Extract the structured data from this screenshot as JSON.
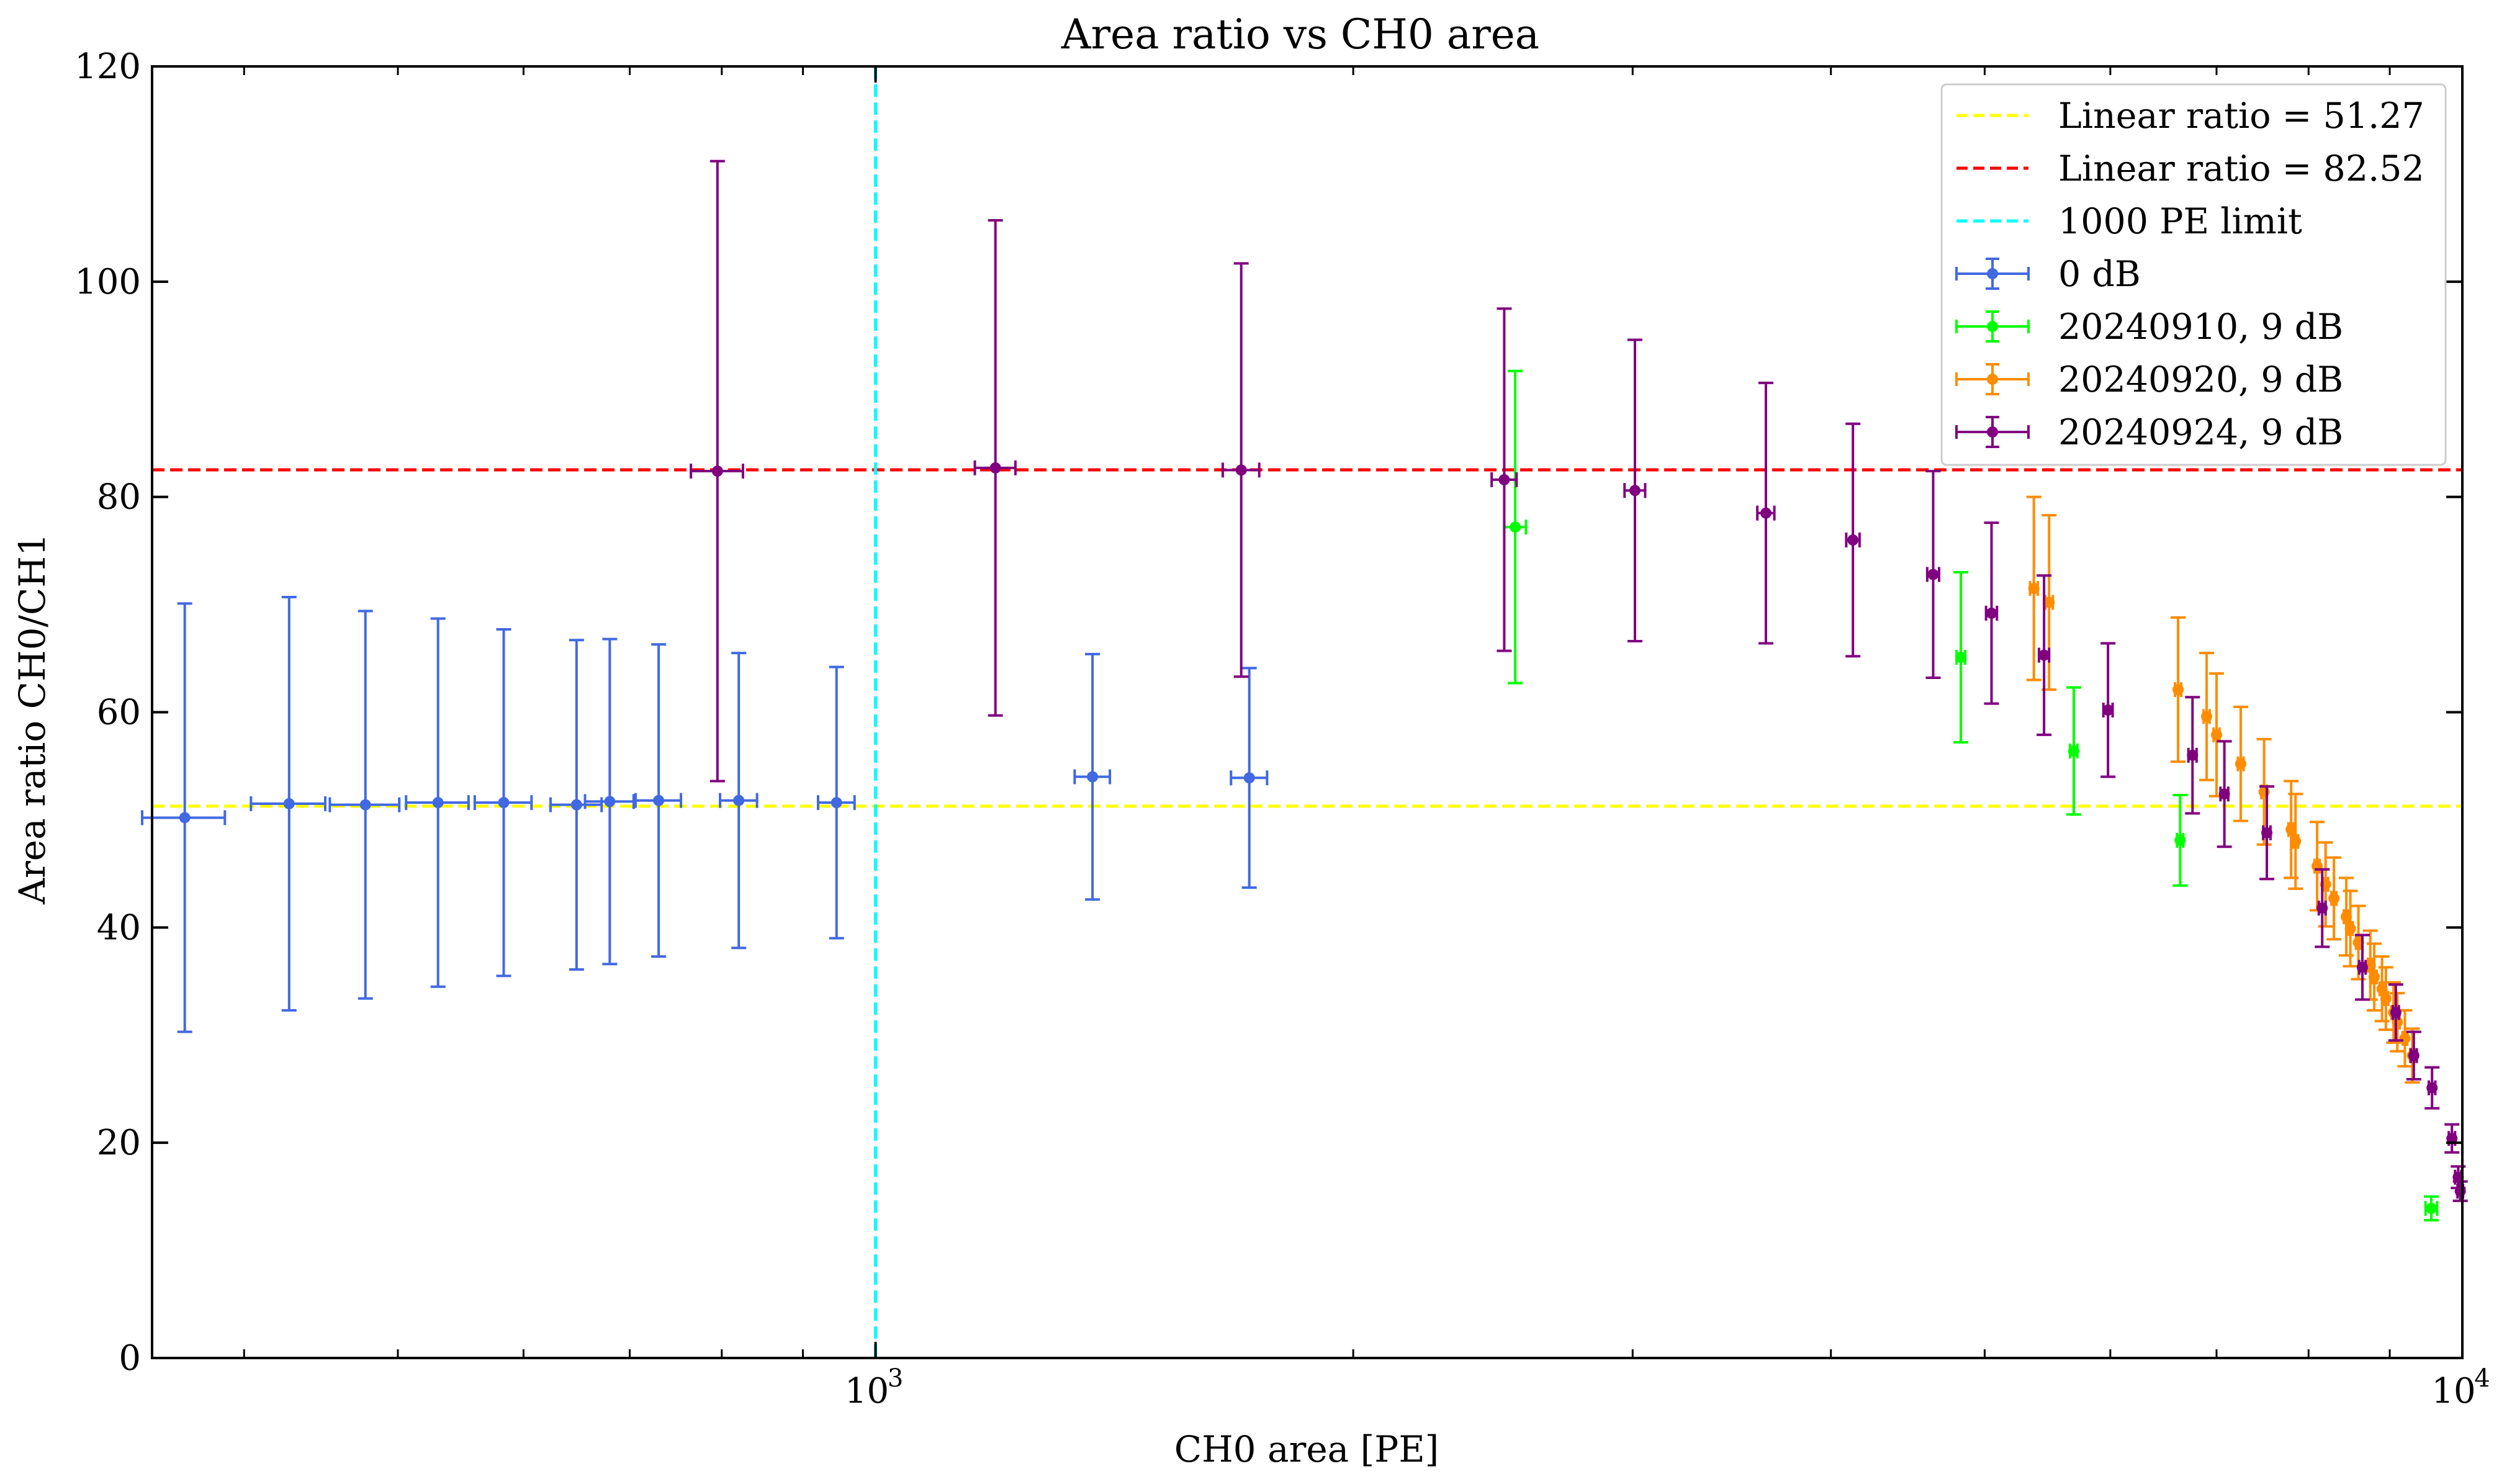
{
  "chart_data": {
    "type": "scatter",
    "title": "Area ratio vs CH0 area",
    "xlabel": "CH0 area [PE]",
    "ylabel": "Area ratio CH0/CH1",
    "xscale": "log",
    "xlim": [
      350,
      10000
    ],
    "ylim": [
      0,
      120
    ],
    "grid": false,
    "legend_position": "top-right",
    "y_ticks": [
      "0",
      "20",
      "40",
      "60",
      "80",
      "100",
      "120"
    ],
    "x_tick_labels": [
      {
        "value": 1000,
        "base": "10",
        "exp": "3"
      },
      {
        "value": 10000,
        "base": "10",
        "exp": "4"
      }
    ],
    "reference_lines": [
      {
        "name": "Linear ratio = 51.27",
        "orientation": "horizontal",
        "value": 51.27,
        "color": "#ffff00"
      },
      {
        "name": "Linear ratio = 82.52",
        "orientation": "horizontal",
        "value": 82.52,
        "color": "#ff0000"
      },
      {
        "name": "1000 PE limit",
        "orientation": "vertical",
        "value": 1000,
        "color": "#00ffff"
      }
    ],
    "series": [
      {
        "name": "0 dB",
        "color": "#4169e1",
        "points": [
          {
            "x": 367,
            "y": 50.2,
            "xerr": 22,
            "yerr": 19.9
          },
          {
            "x": 427,
            "y": 51.5,
            "xerr": 23,
            "yerr": 19.2
          },
          {
            "x": 477,
            "y": 51.4,
            "xerr": 24,
            "yerr": 18.0
          },
          {
            "x": 530,
            "y": 51.6,
            "xerr": 24,
            "yerr": 17.1
          },
          {
            "x": 583,
            "y": 51.6,
            "xerr": 24,
            "yerr": 16.1
          },
          {
            "x": 648,
            "y": 51.4,
            "xerr": 24,
            "yerr": 15.3
          },
          {
            "x": 680,
            "y": 51.7,
            "xerr": 24,
            "yerr": 15.1
          },
          {
            "x": 730,
            "y": 51.8,
            "xerr": 24,
            "yerr": 14.5
          },
          {
            "x": 820,
            "y": 51.8,
            "xerr": 22,
            "yerr": 13.7
          },
          {
            "x": 945,
            "y": 51.6,
            "xerr": 25,
            "yerr": 12.6
          },
          {
            "x": 1370,
            "y": 54.0,
            "xerr": 35,
            "yerr": 11.4
          },
          {
            "x": 1720,
            "y": 53.9,
            "xerr": 45,
            "yerr": 10.2
          }
        ]
      },
      {
        "name": "20240910, 9 dB",
        "color": "#00ff00",
        "points": [
          {
            "x": 2530,
            "y": 77.2,
            "xerr": 40,
            "yerr": 14.5
          },
          {
            "x": 4830,
            "y": 65.1,
            "xerr": 30,
            "yerr": 7.9
          },
          {
            "x": 5690,
            "y": 56.4,
            "xerr": 30,
            "yerr": 5.9
          },
          {
            "x": 6640,
            "y": 48.1,
            "xerr": 30,
            "yerr": 4.2
          },
          {
            "x": 9560,
            "y": 13.9,
            "xerr": 80,
            "yerr": 1.1
          }
        ]
      },
      {
        "name": "20240920, 9 dB",
        "color": "#ff8c00",
        "points": [
          {
            "x": 5370,
            "y": 71.5,
            "xerr": 30,
            "yerr": 8.5
          },
          {
            "x": 5490,
            "y": 70.2,
            "xerr": 30,
            "yerr": 8.1
          },
          {
            "x": 6620,
            "y": 62.1,
            "xerr": 30,
            "yerr": 6.7
          },
          {
            "x": 6900,
            "y": 59.6,
            "xerr": 30,
            "yerr": 5.9
          },
          {
            "x": 7000,
            "y": 57.9,
            "xerr": 30,
            "yerr": 5.7
          },
          {
            "x": 7250,
            "y": 55.2,
            "xerr": 30,
            "yerr": 5.3
          },
          {
            "x": 7500,
            "y": 52.6,
            "xerr": 30,
            "yerr": 4.9
          },
          {
            "x": 7800,
            "y": 49.1,
            "xerr": 30,
            "yerr": 4.5
          },
          {
            "x": 7850,
            "y": 48.0,
            "xerr": 30,
            "yerr": 4.4
          },
          {
            "x": 8100,
            "y": 45.7,
            "xerr": 30,
            "yerr": 4.1
          },
          {
            "x": 8200,
            "y": 44.0,
            "xerr": 30,
            "yerr": 3.9
          },
          {
            "x": 8300,
            "y": 42.7,
            "xerr": 30,
            "yerr": 3.8
          },
          {
            "x": 8450,
            "y": 41.0,
            "xerr": 30,
            "yerr": 3.6
          },
          {
            "x": 8500,
            "y": 39.9,
            "xerr": 30,
            "yerr": 3.5
          },
          {
            "x": 8600,
            "y": 38.6,
            "xerr": 30,
            "yerr": 3.4
          },
          {
            "x": 8750,
            "y": 36.5,
            "xerr": 30,
            "yerr": 3.2
          },
          {
            "x": 8800,
            "y": 35.4,
            "xerr": 30,
            "yerr": 3.1
          },
          {
            "x": 8900,
            "y": 34.3,
            "xerr": 30,
            "yerr": 3.0
          },
          {
            "x": 8950,
            "y": 33.4,
            "xerr": 30,
            "yerr": 2.9
          },
          {
            "x": 9050,
            "y": 32.1,
            "xerr": 30,
            "yerr": 2.8
          },
          {
            "x": 9100,
            "y": 31.2,
            "xerr": 30,
            "yerr": 2.7
          },
          {
            "x": 9200,
            "y": 29.7,
            "xerr": 30,
            "yerr": 2.6
          },
          {
            "x": 9300,
            "y": 28.1,
            "xerr": 30,
            "yerr": 2.5
          }
        ]
      },
      {
        "name": "20240924, 9 dB",
        "color": "#800080",
        "points": [
          {
            "x": 795,
            "y": 82.4,
            "xerr": 30,
            "yerr": 28.8
          },
          {
            "x": 1190,
            "y": 82.7,
            "xerr": 35,
            "yerr": 23.0
          },
          {
            "x": 1700,
            "y": 82.5,
            "xerr": 45,
            "yerr": 19.2
          },
          {
            "x": 2490,
            "y": 81.6,
            "xerr": 45,
            "yerr": 15.9
          },
          {
            "x": 3010,
            "y": 80.6,
            "xerr": 45,
            "yerr": 14.0
          },
          {
            "x": 3640,
            "y": 78.5,
            "xerr": 45,
            "yerr": 12.1
          },
          {
            "x": 4130,
            "y": 76.0,
            "xerr": 40,
            "yerr": 10.8
          },
          {
            "x": 4640,
            "y": 72.8,
            "xerr": 40,
            "yerr": 9.6
          },
          {
            "x": 5050,
            "y": 69.2,
            "xerr": 40,
            "yerr": 8.4
          },
          {
            "x": 5450,
            "y": 65.3,
            "xerr": 40,
            "yerr": 7.4
          },
          {
            "x": 5980,
            "y": 60.2,
            "xerr": 40,
            "yerr": 6.2
          },
          {
            "x": 6760,
            "y": 56.0,
            "xerr": 40,
            "yerr": 5.4
          },
          {
            "x": 7080,
            "y": 52.4,
            "xerr": 40,
            "yerr": 4.9
          },
          {
            "x": 7530,
            "y": 48.8,
            "xerr": 40,
            "yerr": 4.3
          },
          {
            "x": 8160,
            "y": 41.8,
            "xerr": 40,
            "yerr": 3.6
          },
          {
            "x": 8650,
            "y": 36.3,
            "xerr": 40,
            "yerr": 3.0
          },
          {
            "x": 9080,
            "y": 32.1,
            "xerr": 40,
            "yerr": 2.6
          },
          {
            "x": 9320,
            "y": 28.1,
            "xerr": 40,
            "yerr": 2.2
          },
          {
            "x": 9570,
            "y": 25.1,
            "xerr": 45,
            "yerr": 1.9
          },
          {
            "x": 9850,
            "y": 20.4,
            "xerr": 45,
            "yerr": 1.3
          },
          {
            "x": 9940,
            "y": 16.8,
            "xerr": 45,
            "yerr": 1.0
          },
          {
            "x": 9970,
            "y": 15.5,
            "xerr": 40,
            "yerr": 0.9
          }
        ]
      }
    ]
  }
}
